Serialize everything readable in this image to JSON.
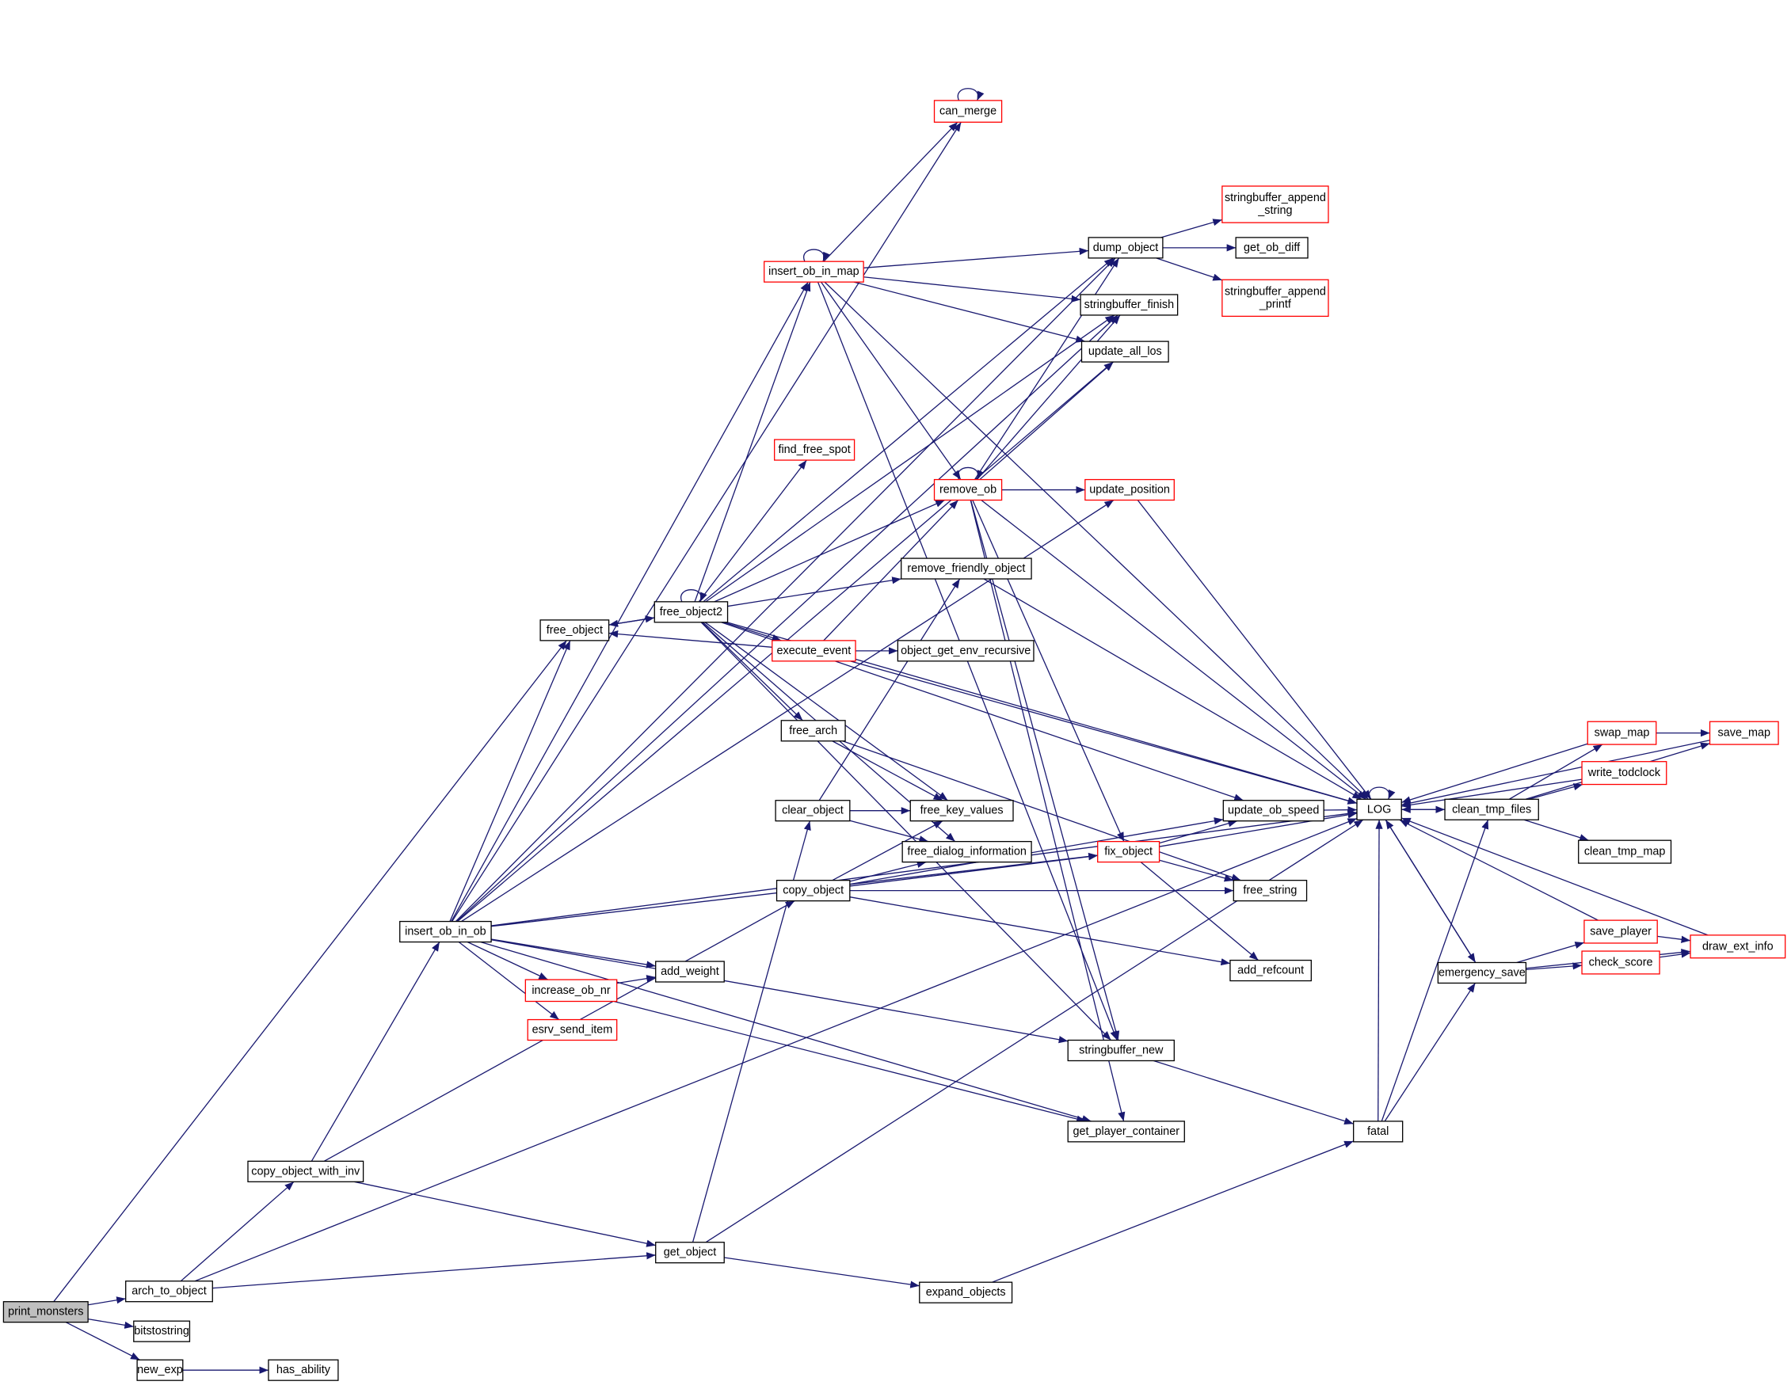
{
  "colors": {
    "edge": "#191970",
    "red_border": "#ff0000",
    "root_fill": "#bfbfbf"
  },
  "nodes": [
    {
      "id": "print_monsters",
      "lines": [
        "print_monsters"
      ],
      "root": true
    },
    {
      "id": "arch_to_object",
      "lines": [
        "arch_to_object"
      ]
    },
    {
      "id": "bitstostring",
      "lines": [
        "bitstostring"
      ]
    },
    {
      "id": "new_exp",
      "lines": [
        "new_exp"
      ]
    },
    {
      "id": "has_ability",
      "lines": [
        "has_ability"
      ]
    },
    {
      "id": "copy_object_with_inv",
      "lines": [
        "copy_object_with_inv"
      ]
    },
    {
      "id": "get_object",
      "lines": [
        "get_object"
      ]
    },
    {
      "id": "expand_objects",
      "lines": [
        "expand_objects"
      ]
    },
    {
      "id": "insert_ob_in_ob",
      "lines": [
        "insert_ob_in_ob"
      ]
    },
    {
      "id": "free_object",
      "lines": [
        "free_object"
      ]
    },
    {
      "id": "free_object2",
      "lines": [
        "free_object2"
      ]
    },
    {
      "id": "insert_ob_in_map",
      "lines": [
        "insert_ob_in_map"
      ],
      "red": true
    },
    {
      "id": "can_merge",
      "lines": [
        "can_merge"
      ],
      "red": true
    },
    {
      "id": "dump_object",
      "lines": [
        "dump_object"
      ]
    },
    {
      "id": "stringbuffer_append_string",
      "lines": [
        "stringbuffer_append",
        "_string"
      ],
      "red": true
    },
    {
      "id": "get_ob_diff",
      "lines": [
        "get_ob_diff"
      ]
    },
    {
      "id": "stringbuffer_append_printf",
      "lines": [
        "stringbuffer_append",
        "_printf"
      ],
      "red": true
    },
    {
      "id": "stringbuffer_finish",
      "lines": [
        "stringbuffer_finish"
      ]
    },
    {
      "id": "update_all_los",
      "lines": [
        "update_all_los"
      ]
    },
    {
      "id": "find_free_spot",
      "lines": [
        "find_free_spot"
      ],
      "red": true
    },
    {
      "id": "remove_ob",
      "lines": [
        "remove_ob"
      ],
      "red": true
    },
    {
      "id": "update_position",
      "lines": [
        "update_position"
      ],
      "red": true
    },
    {
      "id": "remove_friendly_object",
      "lines": [
        "remove_friendly_object"
      ]
    },
    {
      "id": "execute_event",
      "lines": [
        "execute_event"
      ],
      "red": true
    },
    {
      "id": "object_get_env_recursive",
      "lines": [
        "object_get_env_recursive"
      ]
    },
    {
      "id": "free_arch",
      "lines": [
        "free_arch"
      ]
    },
    {
      "id": "clear_object",
      "lines": [
        "clear_object"
      ]
    },
    {
      "id": "free_key_values",
      "lines": [
        "free_key_values"
      ]
    },
    {
      "id": "free_dialog_information",
      "lines": [
        "free_dialog_information"
      ]
    },
    {
      "id": "copy_object",
      "lines": [
        "copy_object"
      ]
    },
    {
      "id": "update_ob_speed",
      "lines": [
        "update_ob_speed"
      ]
    },
    {
      "id": "fix_object",
      "lines": [
        "fix_object"
      ],
      "red": true
    },
    {
      "id": "free_string",
      "lines": [
        "free_string"
      ]
    },
    {
      "id": "add_refcount",
      "lines": [
        "add_refcount"
      ]
    },
    {
      "id": "add_weight",
      "lines": [
        "add_weight"
      ]
    },
    {
      "id": "increase_ob_nr",
      "lines": [
        "increase_ob_nr"
      ],
      "red": true
    },
    {
      "id": "esrv_send_item",
      "lines": [
        "esrv_send_item"
      ],
      "red": true
    },
    {
      "id": "stringbuffer_new",
      "lines": [
        "stringbuffer_new"
      ]
    },
    {
      "id": "get_player_container",
      "lines": [
        "get_player_container"
      ]
    },
    {
      "id": "fatal",
      "lines": [
        "fatal"
      ]
    },
    {
      "id": "LOG",
      "lines": [
        "LOG"
      ]
    },
    {
      "id": "clean_tmp_files",
      "lines": [
        "clean_tmp_files"
      ]
    },
    {
      "id": "swap_map",
      "lines": [
        "swap_map"
      ],
      "red": true
    },
    {
      "id": "save_map",
      "lines": [
        "save_map"
      ],
      "red": true
    },
    {
      "id": "write_todclock",
      "lines": [
        "write_todclock"
      ],
      "red": true
    },
    {
      "id": "clean_tmp_map",
      "lines": [
        "clean_tmp_map"
      ]
    },
    {
      "id": "save_player",
      "lines": [
        "save_player"
      ],
      "red": true
    },
    {
      "id": "draw_ext_info",
      "lines": [
        "draw_ext_info"
      ],
      "red": true
    },
    {
      "id": "check_score",
      "lines": [
        "check_score"
      ],
      "red": true
    },
    {
      "id": "emergency_save",
      "lines": [
        "emergency_save"
      ]
    }
  ],
  "edges": [
    [
      "print_monsters",
      "arch_to_object"
    ],
    [
      "print_monsters",
      "bitstostring"
    ],
    [
      "print_monsters",
      "new_exp"
    ],
    [
      "print_monsters",
      "free_object"
    ],
    [
      "new_exp",
      "has_ability"
    ],
    [
      "arch_to_object",
      "copy_object_with_inv"
    ],
    [
      "arch_to_object",
      "get_object"
    ],
    [
      "arch_to_object",
      "LOG"
    ],
    [
      "copy_object_with_inv",
      "insert_ob_in_ob"
    ],
    [
      "copy_object_with_inv",
      "copy_object"
    ],
    [
      "copy_object_with_inv",
      "get_object"
    ],
    [
      "get_object",
      "clear_object"
    ],
    [
      "get_object",
      "LOG"
    ],
    [
      "get_object",
      "expand_objects"
    ],
    [
      "expand_objects",
      "fatal"
    ],
    [
      "insert_ob_in_ob",
      "free_object"
    ],
    [
      "insert_ob_in_ob",
      "insert_ob_in_map"
    ],
    [
      "insert_ob_in_ob",
      "can_merge"
    ],
    [
      "insert_ob_in_ob",
      "dump_object"
    ],
    [
      "insert_ob_in_ob",
      "stringbuffer_finish"
    ],
    [
      "insert_ob_in_ob",
      "update_all_los"
    ],
    [
      "insert_ob_in_ob",
      "update_position"
    ],
    [
      "insert_ob_in_ob",
      "fix_object"
    ],
    [
      "insert_ob_in_ob",
      "add_weight"
    ],
    [
      "insert_ob_in_ob",
      "increase_ob_nr"
    ],
    [
      "insert_ob_in_ob",
      "esrv_send_item"
    ],
    [
      "insert_ob_in_ob",
      "stringbuffer_new"
    ],
    [
      "insert_ob_in_ob",
      "get_player_container"
    ],
    [
      "insert_ob_in_ob",
      "LOG"
    ],
    [
      "increase_ob_nr",
      "add_weight"
    ],
    [
      "increase_ob_nr",
      "get_player_container"
    ],
    [
      "free_object",
      "free_object2"
    ],
    [
      "free_object2",
      "free_object"
    ],
    [
      "free_object2",
      "free_object2"
    ],
    [
      "free_object2",
      "insert_ob_in_map"
    ],
    [
      "free_object2",
      "find_free_spot"
    ],
    [
      "free_object2",
      "dump_object"
    ],
    [
      "free_object2",
      "stringbuffer_finish"
    ],
    [
      "free_object2",
      "remove_ob"
    ],
    [
      "free_object2",
      "remove_friendly_object"
    ],
    [
      "free_object2",
      "execute_event"
    ],
    [
      "free_object2",
      "free_arch"
    ],
    [
      "free_object2",
      "free_key_values"
    ],
    [
      "free_object2",
      "free_dialog_information"
    ],
    [
      "free_object2",
      "update_ob_speed"
    ],
    [
      "free_object2",
      "stringbuffer_new"
    ],
    [
      "free_object2",
      "LOG"
    ],
    [
      "insert_ob_in_map",
      "insert_ob_in_map"
    ],
    [
      "insert_ob_in_map",
      "can_merge"
    ],
    [
      "insert_ob_in_map",
      "dump_object"
    ],
    [
      "insert_ob_in_map",
      "stringbuffer_finish"
    ],
    [
      "insert_ob_in_map",
      "update_all_los"
    ],
    [
      "insert_ob_in_map",
      "remove_ob"
    ],
    [
      "insert_ob_in_map",
      "LOG"
    ],
    [
      "insert_ob_in_map",
      "stringbuffer_new"
    ],
    [
      "can_merge",
      "can_merge"
    ],
    [
      "dump_object",
      "stringbuffer_append_string"
    ],
    [
      "dump_object",
      "get_ob_diff"
    ],
    [
      "dump_object",
      "stringbuffer_append_printf"
    ],
    [
      "remove_ob",
      "remove_ob"
    ],
    [
      "remove_ob",
      "dump_object"
    ],
    [
      "remove_ob",
      "stringbuffer_finish"
    ],
    [
      "remove_ob",
      "update_all_los"
    ],
    [
      "remove_ob",
      "update_position"
    ],
    [
      "remove_ob",
      "fix_object"
    ],
    [
      "remove_ob",
      "LOG"
    ],
    [
      "remove_ob",
      "stringbuffer_new"
    ],
    [
      "remove_ob",
      "get_player_container"
    ],
    [
      "update_position",
      "LOG"
    ],
    [
      "remove_friendly_object",
      "LOG"
    ],
    [
      "execute_event",
      "remove_ob"
    ],
    [
      "execute_event",
      "free_object"
    ],
    [
      "execute_event",
      "object_get_env_recursive"
    ],
    [
      "execute_event",
      "LOG"
    ],
    [
      "free_arch",
      "free_key_values"
    ],
    [
      "free_arch",
      "free_string"
    ],
    [
      "clear_object",
      "free_key_values"
    ],
    [
      "clear_object",
      "free_dialog_information"
    ],
    [
      "clear_object",
      "remove_friendly_object"
    ],
    [
      "copy_object",
      "free_key_values"
    ],
    [
      "copy_object",
      "free_dialog_information"
    ],
    [
      "copy_object",
      "update_ob_speed"
    ],
    [
      "copy_object",
      "free_string"
    ],
    [
      "copy_object",
      "add_refcount"
    ],
    [
      "copy_object",
      "fix_object"
    ],
    [
      "fix_object",
      "update_ob_speed"
    ],
    [
      "fix_object",
      "free_string"
    ],
    [
      "fix_object",
      "add_refcount"
    ],
    [
      "fix_object",
      "LOG"
    ],
    [
      "update_ob_speed",
      "LOG"
    ],
    [
      "stringbuffer_new",
      "fatal"
    ],
    [
      "fatal",
      "LOG"
    ],
    [
      "fatal",
      "clean_tmp_files"
    ],
    [
      "fatal",
      "emergency_save"
    ],
    [
      "LOG",
      "LOG"
    ],
    [
      "LOG",
      "clean_tmp_files"
    ],
    [
      "LOG",
      "emergency_save"
    ],
    [
      "clean_tmp_files",
      "LOG"
    ],
    [
      "clean_tmp_files",
      "swap_map"
    ],
    [
      "clean_tmp_files",
      "write_todclock"
    ],
    [
      "clean_tmp_files",
      "save_map"
    ],
    [
      "clean_tmp_files",
      "clean_tmp_map"
    ],
    [
      "swap_map",
      "LOG"
    ],
    [
      "swap_map",
      "save_map"
    ],
    [
      "save_map",
      "LOG"
    ],
    [
      "write_todclock",
      "LOG"
    ],
    [
      "emergency_save",
      "LOG"
    ],
    [
      "emergency_save",
      "save_player"
    ],
    [
      "emergency_save",
      "check_score"
    ],
    [
      "emergency_save",
      "draw_ext_info"
    ],
    [
      "save_player",
      "LOG"
    ],
    [
      "save_player",
      "draw_ext_info"
    ],
    [
      "check_score",
      "draw_ext_info"
    ],
    [
      "draw_ext_info",
      "LOG"
    ]
  ]
}
